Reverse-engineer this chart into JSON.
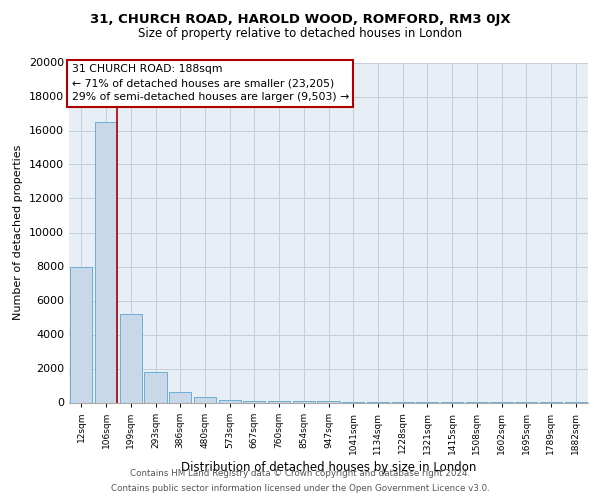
{
  "title1": "31, CHURCH ROAD, HAROLD WOOD, ROMFORD, RM3 0JX",
  "title2": "Size of property relative to detached houses in London",
  "xlabel": "Distribution of detached houses by size in London",
  "ylabel": "Number of detached properties",
  "categories": [
    "12sqm",
    "106sqm",
    "199sqm",
    "293sqm",
    "386sqm",
    "480sqm",
    "573sqm",
    "667sqm",
    "760sqm",
    "854sqm",
    "947sqm",
    "1041sqm",
    "1134sqm",
    "1228sqm",
    "1321sqm",
    "1415sqm",
    "1508sqm",
    "1602sqm",
    "1695sqm",
    "1789sqm",
    "1882sqm"
  ],
  "values": [
    8000,
    16500,
    5200,
    1800,
    600,
    300,
    150,
    100,
    100,
    80,
    60,
    50,
    40,
    30,
    20,
    15,
    10,
    8,
    5,
    3,
    2
  ],
  "bar_color": "#c8d8e8",
  "bar_edge_color": "#6baed6",
  "vline_x": 1.45,
  "vline_color": "#aa0000",
  "ann_line1": "31 CHURCH ROAD: 188sqm",
  "ann_line2": "← 71% of detached houses are smaller (23,205)",
  "ann_line3": "29% of semi-detached houses are larger (9,503) →",
  "ylim": [
    0,
    20000
  ],
  "yticks": [
    0,
    2000,
    4000,
    6000,
    8000,
    10000,
    12000,
    14000,
    16000,
    18000,
    20000
  ],
  "footnote1": "Contains HM Land Registry data © Crown copyright and database right 2024.",
  "footnote2": "Contains public sector information licensed under the Open Government Licence v3.0.",
  "plot_bg": "#e8eef5",
  "grid_color": "#c5cdd8"
}
